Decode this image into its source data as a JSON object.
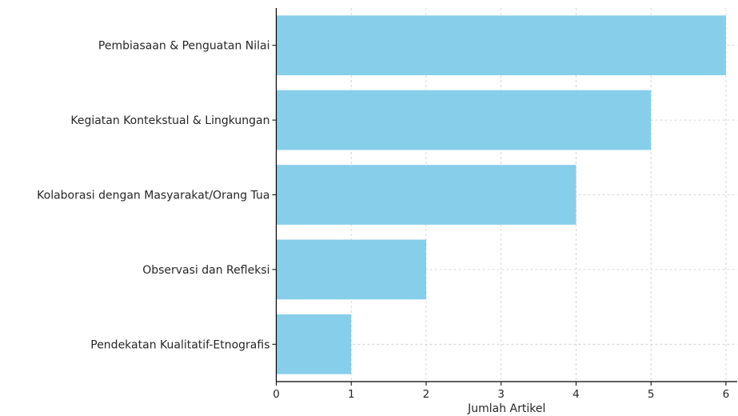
{
  "chart_data": {
    "type": "bar",
    "orientation": "horizontal",
    "categories": [
      "Pembiasaan & Penguatan Nilai",
      "Kegiatan Kontekstual & Lingkungan",
      "Kolaborasi dengan Masyarakat/Orang Tua",
      "Observasi dan Refleksi",
      "Pendekatan Kualitatif-Etnografis"
    ],
    "values": [
      6,
      5,
      4,
      2,
      1
    ],
    "xlabel": "Jumlah Artikel",
    "ylabel": "",
    "xlim": [
      0,
      6.15
    ],
    "xticks": [
      "0",
      "1",
      "2",
      "3",
      "4",
      "5",
      "6"
    ],
    "grid": true,
    "bar_color": "#87ceeb",
    "grid_color": "#cccccc",
    "axis_color": "#000000"
  }
}
